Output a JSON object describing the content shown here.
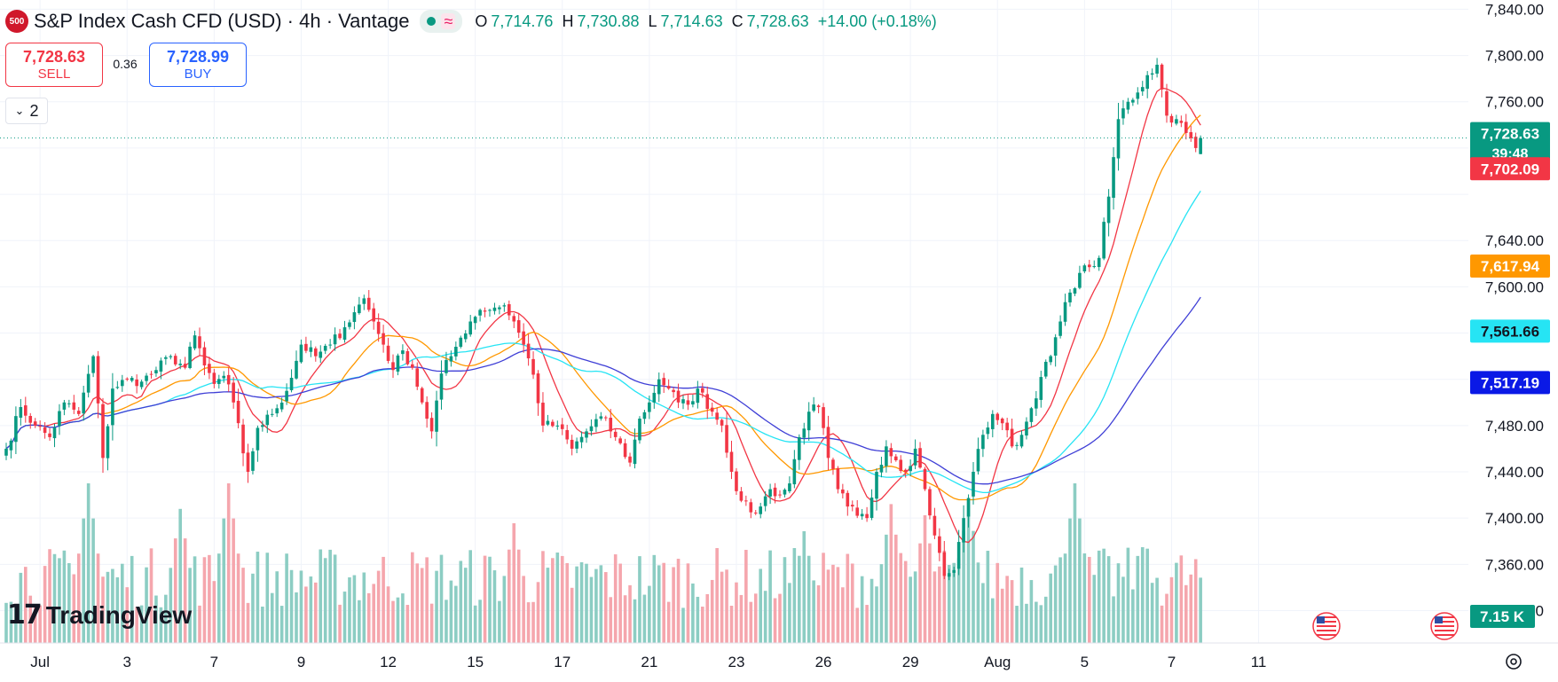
{
  "header": {
    "symbol_badge": "500",
    "title": "S&P Index Cash CFD (USD) · 4h · Vantage",
    "ohlc": [
      {
        "key": "O",
        "value": "7,714.76"
      },
      {
        "key": "H",
        "value": "7,730.88"
      },
      {
        "key": "L",
        "value": "7,714.63"
      },
      {
        "key": "C",
        "value": "7,728.63"
      }
    ],
    "change": "+14.00 (+0.18%)",
    "status_icons": [
      "market-open-dot-icon",
      "delayed-data-icon"
    ]
  },
  "trade": {
    "sell_price": "7,728.63",
    "sell_label": "SELL",
    "spread": "0.36",
    "buy_price": "7,728.99",
    "buy_label": "BUY"
  },
  "indicators_toggle": {
    "count": "2",
    "icon": "chevron-down-icon"
  },
  "branding": {
    "logo_icon": "tradingview-logo-icon",
    "name": "TradingView"
  },
  "axis_controls": {
    "settings_icon": "gear-icon",
    "flag_icon": "us-flag-icon"
  },
  "colors": {
    "up": "#089981",
    "down": "#f23645",
    "vol_up": "#8ccdc3",
    "vol_down": "#f5a6ad",
    "ma_red": "#f23645",
    "ma_orange": "#ff9800",
    "ma_cyan": "#26e4f4",
    "ma_blue": "#3f3fd6"
  },
  "chart_data": {
    "type": "candlestick",
    "timeframe": "4h",
    "y_axis": {
      "ticks": [
        7840,
        7800,
        7760,
        7720,
        7680,
        7640,
        7600,
        7560,
        7520,
        7480,
        7440,
        7400,
        7360,
        7320
      ],
      "tick_labels": [
        "7,840.00",
        "7,800.00",
        "7,760.00",
        "",
        "",
        "7,640.00",
        "7,600.00",
        "",
        "",
        "7,480.00",
        "7,440.00",
        "7,400.00",
        "7,360.00",
        "7,320.00"
      ],
      "range": [
        7292,
        7848
      ]
    },
    "x_axis": {
      "labels": [
        {
          "label": "Jul",
          "bar": 7
        },
        {
          "label": "3",
          "bar": 25
        },
        {
          "label": "7",
          "bar": 43
        },
        {
          "label": "9",
          "bar": 61
        },
        {
          "label": "12",
          "bar": 79
        },
        {
          "label": "15",
          "bar": 97
        },
        {
          "label": "17",
          "bar": 115
        },
        {
          "label": "21",
          "bar": 133
        },
        {
          "label": "23",
          "bar": 151
        },
        {
          "label": "26",
          "bar": 169
        },
        {
          "label": "29",
          "bar": 187
        },
        {
          "label": "Aug",
          "bar": 205
        },
        {
          "label": "5",
          "bar": 223
        },
        {
          "label": "7",
          "bar": 241
        },
        {
          "label": "11",
          "bar": 259
        }
      ]
    },
    "last_bar": 247,
    "anchors": [
      [
        0,
        7460
      ],
      [
        3,
        7496
      ],
      [
        6,
        7480
      ],
      [
        9,
        7470
      ],
      [
        12,
        7500
      ],
      [
        15,
        7490
      ],
      [
        18,
        7540
      ],
      [
        20,
        7452
      ],
      [
        22,
        7512
      ],
      [
        25,
        7520
      ],
      [
        28,
        7518
      ],
      [
        31,
        7528
      ],
      [
        34,
        7540
      ],
      [
        37,
        7530
      ],
      [
        39,
        7558
      ],
      [
        41,
        7532
      ],
      [
        43,
        7516
      ],
      [
        45,
        7523
      ],
      [
        47,
        7500
      ],
      [
        49,
        7456
      ],
      [
        50,
        7440
      ],
      [
        52,
        7478
      ],
      [
        55,
        7490
      ],
      [
        58,
        7510
      ],
      [
        61,
        7550
      ],
      [
        64,
        7540
      ],
      [
        67,
        7550
      ],
      [
        70,
        7565
      ],
      [
        72,
        7578
      ],
      [
        74,
        7590
      ],
      [
        76,
        7570
      ],
      [
        78,
        7550
      ],
      [
        80,
        7528
      ],
      [
        82,
        7545
      ],
      [
        84,
        7530
      ],
      [
        86,
        7500
      ],
      [
        88,
        7475
      ],
      [
        90,
        7525
      ],
      [
        92,
        7540
      ],
      [
        94,
        7556
      ],
      [
        96,
        7570
      ],
      [
        98,
        7580
      ],
      [
        101,
        7582
      ],
      [
        103,
        7584
      ],
      [
        105,
        7570
      ],
      [
        107,
        7550
      ],
      [
        109,
        7524
      ],
      [
        111,
        7480
      ],
      [
        114,
        7480
      ],
      [
        117,
        7460
      ],
      [
        120,
        7475
      ],
      [
        123,
        7488
      ],
      [
        126,
        7470
      ],
      [
        129,
        7448
      ],
      [
        131,
        7486
      ],
      [
        133,
        7500
      ],
      [
        135,
        7520
      ],
      [
        137,
        7512
      ],
      [
        139,
        7500
      ],
      [
        141,
        7498
      ],
      [
        143,
        7512
      ],
      [
        146,
        7492
      ],
      [
        148,
        7480
      ],
      [
        150,
        7440
      ],
      [
        152,
        7415
      ],
      [
        154,
        7405
      ],
      [
        156,
        7410
      ],
      [
        158,
        7425
      ],
      [
        160,
        7420
      ],
      [
        162,
        7430
      ],
      [
        164,
        7470
      ],
      [
        166,
        7492
      ],
      [
        168,
        7496
      ],
      [
        170,
        7452
      ],
      [
        172,
        7425
      ],
      [
        174,
        7410
      ],
      [
        176,
        7402
      ],
      [
        178,
        7400
      ],
      [
        180,
        7440
      ],
      [
        182,
        7462
      ],
      [
        184,
        7450
      ],
      [
        186,
        7440
      ],
      [
        188,
        7460
      ],
      [
        190,
        7425
      ],
      [
        192,
        7385
      ],
      [
        194,
        7350
      ],
      [
        196,
        7355
      ],
      [
        198,
        7400
      ],
      [
        200,
        7440
      ],
      [
        202,
        7472
      ],
      [
        204,
        7490
      ],
      [
        206,
        7482
      ],
      [
        208,
        7462
      ],
      [
        210,
        7472
      ],
      [
        212,
        7495
      ],
      [
        214,
        7522
      ],
      [
        216,
        7540
      ],
      [
        218,
        7570
      ],
      [
        220,
        7595
      ],
      [
        222,
        7612
      ],
      [
        224,
        7617
      ],
      [
        226,
        7625
      ],
      [
        228,
        7678
      ],
      [
        230,
        7745
      ],
      [
        232,
        7760
      ],
      [
        234,
        7768
      ],
      [
        236,
        7783
      ],
      [
        238,
        7792
      ],
      [
        240,
        7748
      ],
      [
        242,
        7745
      ],
      [
        244,
        7733
      ],
      [
        246,
        7720
      ],
      [
        247,
        7728.63
      ]
    ],
    "current_bar": {
      "open": 7714.76,
      "high": 7730.88,
      "low": 7714.63,
      "close": 7728.63
    },
    "volume_peaks": [
      [
        17,
        100
      ],
      [
        36,
        84
      ],
      [
        46,
        100
      ],
      [
        105,
        75
      ],
      [
        165,
        70
      ],
      [
        183,
        87
      ],
      [
        190,
        80
      ],
      [
        199,
        90
      ],
      [
        221,
        100
      ],
      [
        235,
        60
      ]
    ],
    "series": [
      {
        "name": "",
        "type": "ma",
        "length": 9,
        "color": "#f23645"
      },
      {
        "name": "",
        "type": "ma",
        "length": 20,
        "color": "#ff9800"
      },
      {
        "name": "",
        "type": "ma",
        "length": 34,
        "color": "#26e4f4"
      },
      {
        "name": "",
        "type": "ma",
        "length": 55,
        "color": "#3f3fd6"
      }
    ],
    "price_labels": [
      {
        "name": "last-price",
        "value": "7,728.63",
        "sub": "39:48",
        "color": "#089981",
        "level": 7728.63
      },
      {
        "name": "ma-red",
        "value": "7,702.09",
        "color": "#f23645",
        "level": 7702.09
      },
      {
        "name": "ma-orange",
        "value": "7,617.94",
        "color": "#ff9800",
        "level": 7617.94
      },
      {
        "name": "ma-cyan",
        "value": "7,561.66",
        "color": "#26e4f4",
        "level": 7561.66
      },
      {
        "name": "ma-blue",
        "value": "7,517.19",
        "color": "#0a19e6",
        "level": 7517.19
      }
    ],
    "volume_label": "7.15 K",
    "grid": true
  }
}
